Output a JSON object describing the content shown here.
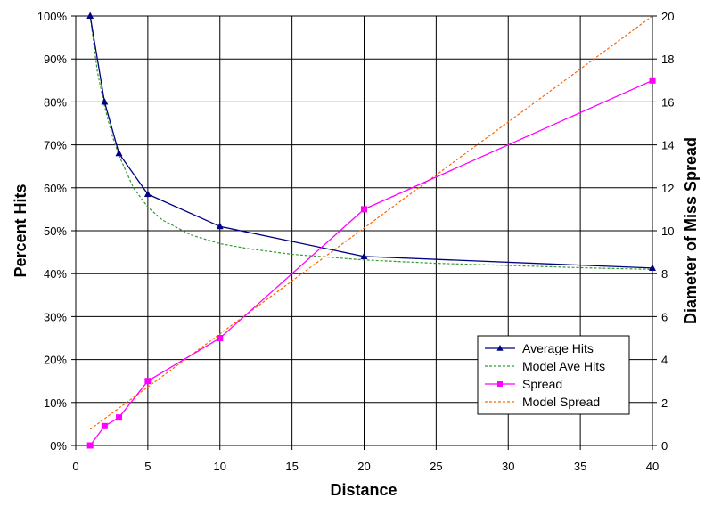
{
  "chart_data": {
    "type": "line",
    "title": "",
    "xlabel": "Distance",
    "ylabel_left": "Percent Hits",
    "ylabel_right": "Diameter of Miss Spread",
    "xlim": [
      0,
      40
    ],
    "ylim_left": [
      0,
      100
    ],
    "ylim_right": [
      0,
      20
    ],
    "grid": true,
    "legend_position": "bottom-right",
    "x_ticks": [
      0,
      5,
      10,
      15,
      20,
      25,
      30,
      35,
      40
    ],
    "x_tick_labels": [
      "0",
      "5",
      "10",
      "15",
      "20",
      "25",
      "30",
      "35",
      "40"
    ],
    "y_left_ticks": [
      0,
      10,
      20,
      30,
      40,
      50,
      60,
      70,
      80,
      90,
      100
    ],
    "y_left_tick_labels": [
      "0%",
      "10%",
      "20%",
      "30%",
      "40%",
      "50%",
      "60%",
      "70%",
      "80%",
      "90%",
      "100%"
    ],
    "y_right_ticks": [
      0,
      2,
      4,
      6,
      8,
      10,
      12,
      14,
      16,
      18,
      20
    ],
    "y_right_tick_labels": [
      "0",
      "2",
      "4",
      "6",
      "8",
      "10",
      "12",
      "14",
      "16",
      "18",
      "20"
    ],
    "series": [
      {
        "name": "Average Hits",
        "axis": "left",
        "style": "solid",
        "marker": "triangle",
        "color": "#000080",
        "x": [
          1,
          2,
          3,
          5,
          10,
          20,
          40
        ],
        "y": [
          100,
          80,
          68,
          58.5,
          51,
          44,
          41.3
        ]
      },
      {
        "name": "Model Ave Hits",
        "axis": "left",
        "style": "dotted",
        "marker": "none",
        "color": "#339933",
        "x": [
          1,
          1.5,
          2,
          2.5,
          3,
          4,
          5,
          6,
          8,
          10,
          12,
          15,
          20,
          25,
          30,
          35,
          40
        ],
        "y": [
          100,
          87,
          79,
          72.5,
          67.5,
          60,
          55.5,
          52.5,
          49,
          47,
          45.8,
          44.5,
          43.2,
          42.4,
          41.9,
          41.4,
          41
        ]
      },
      {
        "name": "Spread",
        "axis": "right",
        "style": "solid",
        "marker": "square",
        "color": "#FF00FF",
        "x": [
          1,
          2,
          3,
          5,
          10,
          20,
          40
        ],
        "y": [
          0,
          0.9,
          1.3,
          3,
          5,
          11,
          17
        ]
      },
      {
        "name": "Model Spread",
        "axis": "right",
        "style": "dotted",
        "marker": "none",
        "color": "#FF6600",
        "x": [
          1,
          40
        ],
        "y": [
          0.75,
          20
        ]
      }
    ]
  }
}
